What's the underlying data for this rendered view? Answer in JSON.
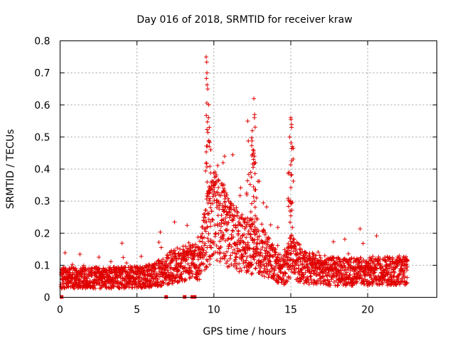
{
  "chart_data": {
    "type": "scatter",
    "title": "Day 016 of 2018, SRMTID for receiver kraw",
    "xlabel": "GPS time / hours",
    "ylabel": "SRMTID / TECUs",
    "xlim": [
      0,
      24.5
    ],
    "ylim": [
      0,
      0.8
    ],
    "x_ticks": [
      0,
      5,
      10,
      15,
      20
    ],
    "x_tick_labels": [
      "0",
      "5",
      "10",
      "15",
      "20"
    ],
    "y_ticks": [
      0,
      0.1,
      0.2,
      0.3,
      0.4,
      0.5,
      0.6,
      0.7,
      0.8
    ],
    "y_tick_labels": [
      "0",
      "0.1",
      "0.2",
      "0.3",
      "0.4",
      "0.5",
      "0.6",
      "0.7",
      "0.8"
    ],
    "grid": true,
    "marker": "plus",
    "color": "#e00000",
    "series": [
      {
        "name": "SRMTID",
        "x_range": [
          0.05,
          22.6
        ],
        "baseline_level": [
          [
            0.0,
            0.06
          ],
          [
            3.0,
            0.06
          ],
          [
            6.0,
            0.065
          ],
          [
            7.5,
            0.1
          ],
          [
            9.0,
            0.11
          ],
          [
            9.5,
            0.2
          ],
          [
            10.0,
            0.26
          ],
          [
            11.0,
            0.2
          ],
          [
            12.0,
            0.16
          ],
          [
            13.0,
            0.16
          ],
          [
            14.0,
            0.1
          ],
          [
            14.5,
            0.08
          ],
          [
            15.0,
            0.13
          ],
          [
            16.0,
            0.09
          ],
          [
            18.0,
            0.08
          ],
          [
            20.0,
            0.08
          ],
          [
            22.6,
            0.085
          ]
        ],
        "peaks": [
          {
            "x": 9.5,
            "y": 0.75
          },
          {
            "x": 9.55,
            "y": 0.7
          },
          {
            "x": 9.6,
            "y": 0.65
          },
          {
            "x": 9.65,
            "y": 0.56
          },
          {
            "x": 9.7,
            "y": 0.53
          },
          {
            "x": 9.8,
            "y": 0.46
          },
          {
            "x": 10.7,
            "y": 0.44
          },
          {
            "x": 10.6,
            "y": 0.42
          },
          {
            "x": 12.6,
            "y": 0.62
          },
          {
            "x": 12.65,
            "y": 0.57
          },
          {
            "x": 12.2,
            "y": 0.55
          },
          {
            "x": 12.5,
            "y": 0.52
          },
          {
            "x": 12.55,
            "y": 0.46
          },
          {
            "x": 12.7,
            "y": 0.42
          },
          {
            "x": 12.4,
            "y": 0.39
          },
          {
            "x": 15.0,
            "y": 0.56
          },
          {
            "x": 15.05,
            "y": 0.53
          },
          {
            "x": 15.1,
            "y": 0.47
          },
          {
            "x": 14.9,
            "y": 0.39
          },
          {
            "x": 15.0,
            "y": 0.3
          }
        ]
      }
    ],
    "zero_flags_x": [
      0.1,
      6.9,
      8.1,
      8.6,
      8.75
    ]
  }
}
